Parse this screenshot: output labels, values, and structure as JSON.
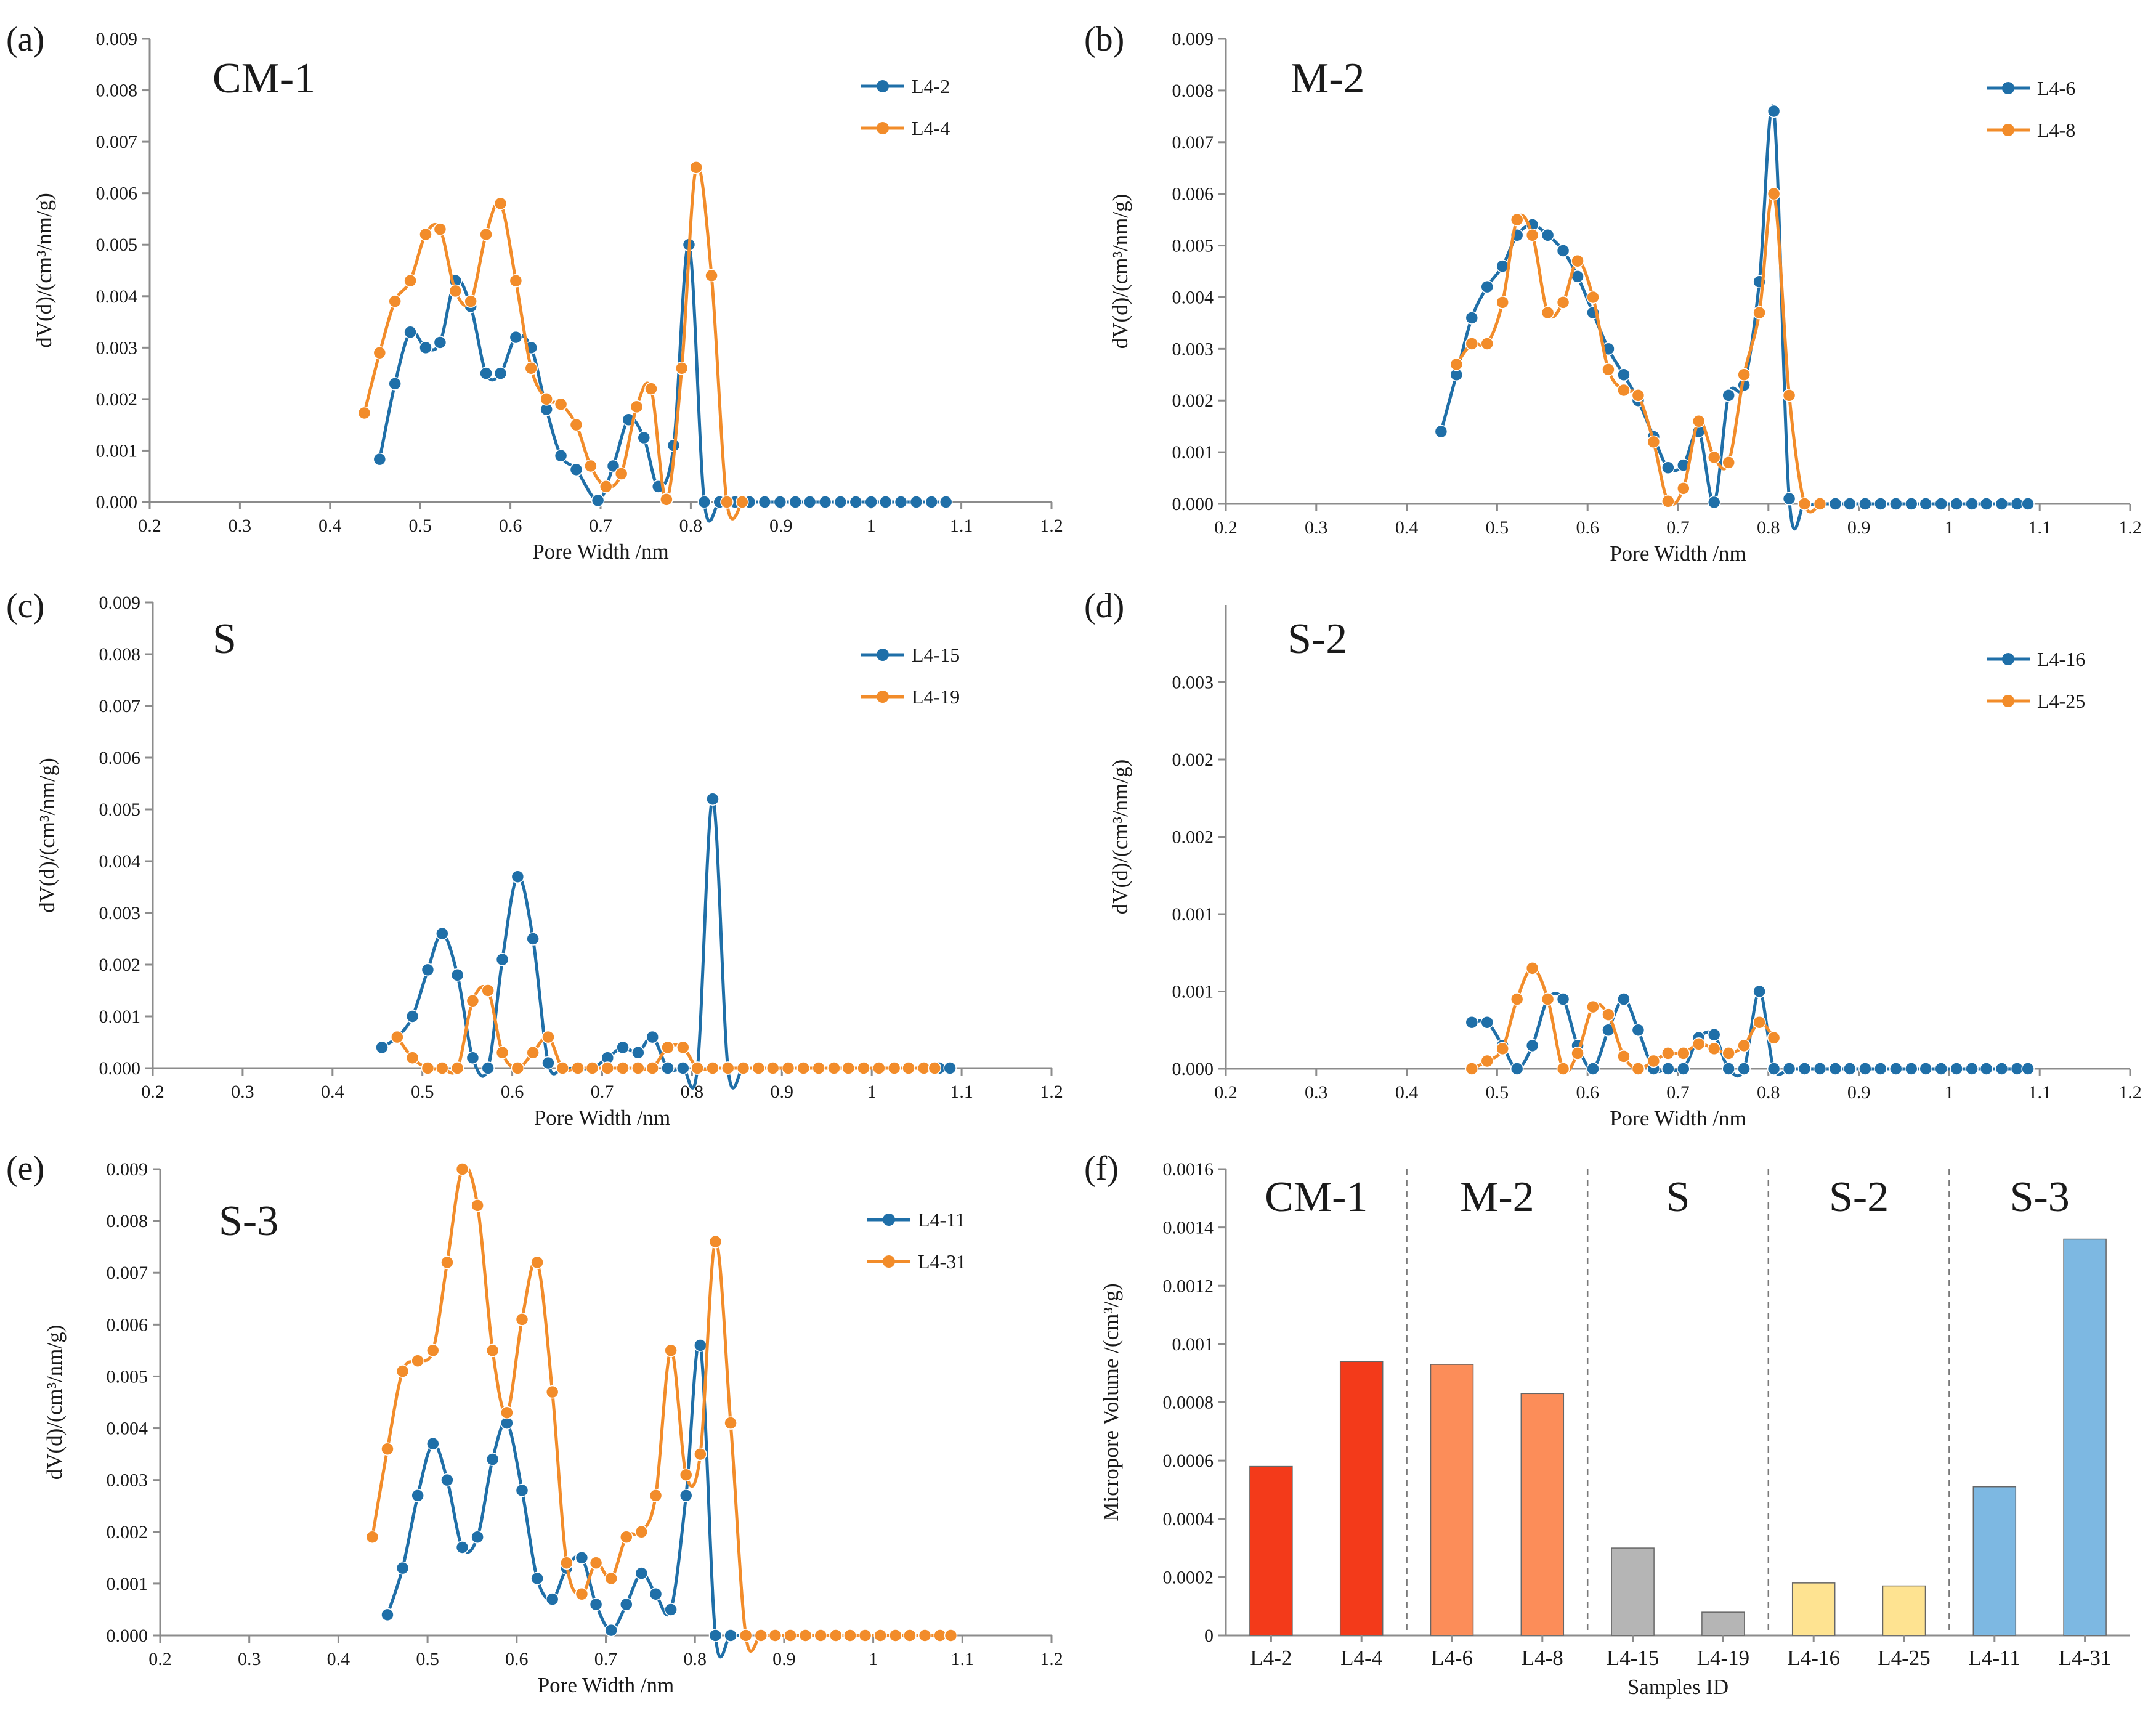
{
  "chart_data": [
    {
      "panel": "(a)",
      "type": "line",
      "title": "CM-1",
      "xlabel": "Pore Width /nm",
      "ylabel": "dV(d)/(cm³/nm/g)",
      "xlim": [
        0.2,
        1.2
      ],
      "ylim": [
        0,
        0.009
      ],
      "x_ticks": [
        "0.2",
        "0.3",
        "0.4",
        "0.5",
        "0.6",
        "0.7",
        "0.8",
        "0.9",
        "1",
        "1.1",
        "1.2"
      ],
      "y_ticks": [
        "0.000",
        "0.001",
        "0.002",
        "0.003",
        "0.004",
        "0.005",
        "0.006",
        "0.007",
        "0.008",
        "0.009"
      ],
      "legend_position": "top-right",
      "series": [
        {
          "name": "L4-2",
          "color": "#1f6fa8",
          "x": [
            0.455,
            0.472,
            0.489,
            0.506,
            0.522,
            0.539,
            0.556,
            0.573,
            0.589,
            0.606,
            0.623,
            0.64,
            0.656,
            0.673,
            0.697,
            0.714,
            0.731,
            0.748,
            0.764,
            0.781,
            0.798,
            0.815,
            0.832,
            0.849,
            0.865,
            0.882,
            0.899,
            0.916,
            0.932,
            0.949,
            0.966,
            0.983,
            1.0,
            1.016,
            1.033,
            1.05,
            1.067,
            1.083
          ],
          "y": [
            0.00083,
            0.0023,
            0.0033,
            0.003,
            0.0031,
            0.0043,
            0.0038,
            0.0025,
            0.0025,
            0.0032,
            0.003,
            0.0018,
            0.0009,
            0.00063,
            3e-05,
            0.0007,
            0.0016,
            0.00125,
            0.0003,
            0.0011,
            0.005,
            0,
            0,
            0,
            0,
            0,
            0,
            0,
            0,
            0,
            0,
            0,
            0,
            0,
            0,
            0,
            0,
            0
          ]
        },
        {
          "name": "L4-4",
          "color": "#f28c2a",
          "x": [
            0.438,
            0.455,
            0.472,
            0.489,
            0.506,
            0.522,
            0.539,
            0.556,
            0.573,
            0.589,
            0.606,
            0.623,
            0.64,
            0.656,
            0.673,
            0.689,
            0.706,
            0.723,
            0.74,
            0.756,
            0.773,
            0.79,
            0.806,
            0.823,
            0.84,
            0.857
          ],
          "y": [
            0.00173,
            0.0029,
            0.0039,
            0.0043,
            0.0052,
            0.0053,
            0.0041,
            0.0039,
            0.0052,
            0.0058,
            0.0043,
            0.0026,
            0.002,
            0.0019,
            0.0015,
            0.0007,
            0.0003,
            0.00055,
            0.00185,
            0.0022,
            5e-05,
            0.0026,
            0.0065,
            0.0044,
            0,
            0
          ]
        }
      ]
    },
    {
      "panel": "(b)",
      "type": "line",
      "title": "M-2",
      "xlabel": "Pore Width /nm",
      "ylabel": "dV(d)/(cm³/nm/g)",
      "xlim": [
        0.2,
        1.2
      ],
      "ylim": [
        0,
        0.009
      ],
      "x_ticks": [
        "0.2",
        "0.3",
        "0.4",
        "0.5",
        "0.6",
        "0.7",
        "0.8",
        "0.9",
        "1",
        "1.1",
        "1.2"
      ],
      "y_ticks": [
        "0.000",
        "0.001",
        "0.002",
        "0.003",
        "0.004",
        "0.005",
        "0.006",
        "0.007",
        "0.008",
        "0.009"
      ],
      "legend_position": "top-right",
      "series": [
        {
          "name": "L4-6",
          "color": "#1f6fa8",
          "x": [
            0.438,
            0.455,
            0.472,
            0.489,
            0.506,
            0.522,
            0.539,
            0.556,
            0.573,
            0.589,
            0.606,
            0.623,
            0.64,
            0.656,
            0.673,
            0.689,
            0.706,
            0.723,
            0.74,
            0.756,
            0.773,
            0.79,
            0.806,
            0.823,
            0.84,
            0.857,
            0.874,
            0.89,
            0.907,
            0.924,
            0.941,
            0.958,
            0.974,
            0.991,
            1.008,
            1.025,
            1.041,
            1.058,
            1.075,
            1.087
          ],
          "y": [
            0.0014,
            0.0025,
            0.0036,
            0.0042,
            0.0046,
            0.0052,
            0.0054,
            0.0052,
            0.0049,
            0.0044,
            0.0037,
            0.003,
            0.0025,
            0.002,
            0.0013,
            0.0007,
            0.00075,
            0.0014,
            3e-05,
            0.0021,
            0.0023,
            0.0043,
            0.0076,
            0.0001,
            0,
            0,
            0,
            0,
            0,
            0,
            0,
            0,
            0,
            0,
            0,
            0,
            0,
            0,
            0,
            0
          ]
        },
        {
          "name": "L4-8",
          "color": "#f28c2a",
          "x": [
            0.455,
            0.472,
            0.489,
            0.506,
            0.522,
            0.539,
            0.556,
            0.573,
            0.589,
            0.606,
            0.623,
            0.64,
            0.656,
            0.673,
            0.689,
            0.706,
            0.723,
            0.74,
            0.756,
            0.773,
            0.79,
            0.806,
            0.823,
            0.84,
            0.857
          ],
          "y": [
            0.0027,
            0.0031,
            0.0031,
            0.0039,
            0.0055,
            0.0052,
            0.0037,
            0.0039,
            0.0047,
            0.004,
            0.0026,
            0.0022,
            0.0021,
            0.0012,
            5e-05,
            0.0003,
            0.0016,
            0.0009,
            0.0008,
            0.0025,
            0.0037,
            0.006,
            0.0021,
            0,
            0
          ]
        }
      ]
    },
    {
      "panel": "(c)",
      "type": "line",
      "title": "S",
      "xlabel": "Pore Width /nm",
      "ylabel": "dV(d)/(cm³/nm/g)",
      "xlim": [
        0.2,
        1.2
      ],
      "ylim": [
        0,
        0.009
      ],
      "x_ticks": [
        "0.2",
        "0.3",
        "0.4",
        "0.5",
        "0.6",
        "0.7",
        "0.8",
        "0.9",
        "1",
        "1.1",
        "1.2"
      ],
      "y_ticks": [
        "0.000",
        "0.001",
        "0.002",
        "0.003",
        "0.004",
        "0.005",
        "0.006",
        "0.007",
        "0.008",
        "0.009"
      ],
      "legend_position": "top-right",
      "series": [
        {
          "name": "L4-15",
          "color": "#1f6fa8",
          "x": [
            0.455,
            0.472,
            0.489,
            0.506,
            0.522,
            0.539,
            0.556,
            0.573,
            0.589,
            0.606,
            0.623,
            0.64,
            0.656,
            0.673,
            0.689,
            0.706,
            0.723,
            0.74,
            0.756,
            0.773,
            0.79,
            0.806,
            0.823,
            0.84,
            0.857,
            0.874,
            0.89,
            0.907,
            0.924,
            0.941,
            0.958,
            0.974,
            0.991,
            1.008,
            1.025,
            1.041,
            1.058,
            1.075,
            1.087
          ],
          "y": [
            0.0004,
            0.0006,
            0.001,
            0.0019,
            0.0026,
            0.0018,
            0.0002,
            0,
            0.0021,
            0.0037,
            0.0025,
            0.0001,
            0,
            0,
            0,
            0.0002,
            0.0004,
            0.0003,
            0.0006,
            0,
            0,
            0,
            0.0052,
            0,
            0,
            0,
            0,
            0,
            0,
            0,
            0,
            0,
            0,
            0,
            0,
            0,
            0,
            0,
            0
          ]
        },
        {
          "name": "L4-19",
          "color": "#f28c2a",
          "x": [
            0.472,
            0.489,
            0.506,
            0.522,
            0.539,
            0.556,
            0.573,
            0.589,
            0.606,
            0.623,
            0.64,
            0.656,
            0.673,
            0.689,
            0.706,
            0.723,
            0.74,
            0.756,
            0.773,
            0.79,
            0.806,
            0.823,
            0.84,
            0.857,
            0.874,
            0.89,
            0.907,
            0.924,
            0.941,
            0.958,
            0.974,
            0.991,
            1.008,
            1.025,
            1.041,
            1.058,
            1.07
          ],
          "y": [
            0.0006,
            0.0002,
            0,
            0,
            0,
            0.0013,
            0.0015,
            0.0003,
            0,
            0.0003,
            0.0006,
            0,
            0,
            0,
            0,
            0,
            0,
            0,
            0.0004,
            0.0004,
            0,
            0,
            0,
            0,
            0,
            0,
            0,
            0,
            0,
            0,
            0,
            0,
            0,
            0,
            0,
            0,
            0
          ]
        }
      ]
    },
    {
      "panel": "(d)",
      "type": "line",
      "title": "S-2",
      "xlabel": "Pore Width /nm",
      "ylabel": "dV(d)/(cm³/nm/g)",
      "xlim": [
        0.2,
        1.2
      ],
      "ylim": [
        0,
        0.003
      ],
      "x_ticks": [
        "0.2",
        "0.3",
        "0.4",
        "0.5",
        "0.6",
        "0.7",
        "0.8",
        "0.9",
        "1",
        "1.1",
        "1.2"
      ],
      "y_ticks": [
        "0.000",
        "0.001",
        "0.001",
        "0.002",
        "0.002",
        "0.003"
      ],
      "y_tick_values": [
        0,
        0.0005,
        0.001,
        0.0015,
        0.002,
        0.0025
      ],
      "legend_position": "top-right",
      "series": [
        {
          "name": "L4-16",
          "color": "#1f6fa8",
          "x": [
            0.472,
            0.489,
            0.506,
            0.522,
            0.539,
            0.556,
            0.573,
            0.589,
            0.606,
            0.623,
            0.64,
            0.656,
            0.673,
            0.689,
            0.706,
            0.723,
            0.74,
            0.756,
            0.773,
            0.79,
            0.806,
            0.823,
            0.84,
            0.857,
            0.874,
            0.89,
            0.907,
            0.924,
            0.941,
            0.958,
            0.974,
            0.991,
            1.008,
            1.025,
            1.041,
            1.058,
            1.075,
            1.087
          ],
          "y": [
            0.0003,
            0.0003,
            0.00015,
            0,
            0.00015,
            0.00045,
            0.00045,
            0.00015,
            0,
            0.00025,
            0.00045,
            0.00025,
            0,
            0,
            0,
            0.0002,
            0.00022,
            0,
            0,
            0.0005,
            0,
            0,
            0,
            0,
            0,
            0,
            0,
            0,
            0,
            0,
            0,
            0,
            0,
            0,
            0,
            0,
            0,
            0
          ]
        },
        {
          "name": "L4-25",
          "color": "#f28c2a",
          "x": [
            0.472,
            0.489,
            0.506,
            0.522,
            0.539,
            0.556,
            0.573,
            0.589,
            0.606,
            0.623,
            0.64,
            0.656,
            0.673,
            0.689,
            0.706,
            0.723,
            0.74,
            0.756,
            0.773,
            0.79,
            0.806
          ],
          "y": [
            0,
            5e-05,
            0.00013,
            0.00045,
            0.00065,
            0.00045,
            0,
            0.0001,
            0.0004,
            0.00035,
            8e-05,
            0,
            5e-05,
            0.0001,
            0.0001,
            0.00016,
            0.00013,
            0.0001,
            0.00015,
            0.0003,
            0.0002
          ]
        }
      ]
    },
    {
      "panel": "(e)",
      "type": "line",
      "title": "S-3",
      "xlabel": "Pore Width /nm",
      "ylabel": "dV(d)/(cm³/nm/g)",
      "xlim": [
        0.2,
        1.2
      ],
      "ylim": [
        0,
        0.009
      ],
      "x_ticks": [
        "0.2",
        "0.3",
        "0.4",
        "0.5",
        "0.6",
        "0.7",
        "0.8",
        "0.9",
        "1",
        "1.1",
        "1.2"
      ],
      "y_ticks": [
        "0.000",
        "0.001",
        "0.002",
        "0.003",
        "0.004",
        "0.005",
        "0.006",
        "0.007",
        "0.008",
        "0.009"
      ],
      "legend_position": "top-right",
      "series": [
        {
          "name": "L4-11",
          "color": "#1f6fa8",
          "x": [
            0.455,
            0.472,
            0.489,
            0.506,
            0.522,
            0.539,
            0.556,
            0.573,
            0.589,
            0.606,
            0.623,
            0.64,
            0.656,
            0.673,
            0.689,
            0.706,
            0.723,
            0.74,
            0.756,
            0.773,
            0.79,
            0.806,
            0.823,
            0.84,
            0.857
          ],
          "y": [
            0.0004,
            0.0013,
            0.0027,
            0.0037,
            0.003,
            0.0017,
            0.0019,
            0.0034,
            0.0041,
            0.0028,
            0.0011,
            0.0007,
            0.0013,
            0.0015,
            0.0006,
            0.0001,
            0.0006,
            0.0012,
            0.0008,
            0.0005,
            0.0027,
            0.0056,
            0,
            0,
            0
          ]
        },
        {
          "name": "L4-31",
          "color": "#f28c2a",
          "x": [
            0.438,
            0.455,
            0.472,
            0.489,
            0.506,
            0.522,
            0.539,
            0.556,
            0.573,
            0.589,
            0.606,
            0.623,
            0.64,
            0.656,
            0.673,
            0.689,
            0.706,
            0.723,
            0.74,
            0.756,
            0.773,
            0.79,
            0.806,
            0.823,
            0.84,
            0.857,
            0.874,
            0.89,
            0.907,
            0.924,
            0.941,
            0.958,
            0.974,
            0.991,
            1.008,
            1.025,
            1.041,
            1.058,
            1.075,
            1.087
          ],
          "y": [
            0.0019,
            0.0036,
            0.0051,
            0.0053,
            0.0055,
            0.0072,
            0.009,
            0.0083,
            0.0055,
            0.0043,
            0.0061,
            0.0072,
            0.0047,
            0.0014,
            0.0008,
            0.0014,
            0.0011,
            0.0019,
            0.002,
            0.0027,
            0.0055,
            0.0031,
            0.0035,
            0.0076,
            0.0041,
            0,
            0,
            0,
            0,
            0,
            0,
            0,
            0,
            0,
            0,
            0,
            0,
            0,
            0,
            0
          ]
        }
      ]
    },
    {
      "panel": "(f)",
      "type": "bar",
      "xlabel": "Samples ID",
      "ylabel": "Micropore Volume /(cm³/g)",
      "ylim": [
        0,
        0.0016
      ],
      "y_ticks": [
        "0",
        "0.0002",
        "0.0004",
        "0.0006",
        "0.0008",
        "0.001",
        "0.0012",
        "0.0014",
        "0.0016"
      ],
      "categories": [
        "L4-2",
        "L4-4",
        "L4-6",
        "L4-8",
        "L4-15",
        "L4-19",
        "L4-16",
        "L4-25",
        "L4-11",
        "L4-31"
      ],
      "values": [
        0.00058,
        0.00094,
        0.00093,
        0.00083,
        0.0003,
        8e-05,
        0.00018,
        0.00017,
        0.00051,
        0.00136
      ],
      "colors": [
        "#f33a1a",
        "#f33a1a",
        "#fc8d59",
        "#fc8d59",
        "#b5b5b5",
        "#b5b5b5",
        "#fee391",
        "#fee391",
        "#7db8e2",
        "#7db8e2"
      ],
      "groups": [
        {
          "name": "CM-1",
          "bars": [
            0,
            1
          ]
        },
        {
          "name": "M-2",
          "bars": [
            2,
            3
          ]
        },
        {
          "name": "S",
          "bars": [
            4,
            5
          ]
        },
        {
          "name": "S-2",
          "bars": [
            6,
            7
          ]
        },
        {
          "name": "S-3",
          "bars": [
            8,
            9
          ]
        }
      ]
    }
  ]
}
